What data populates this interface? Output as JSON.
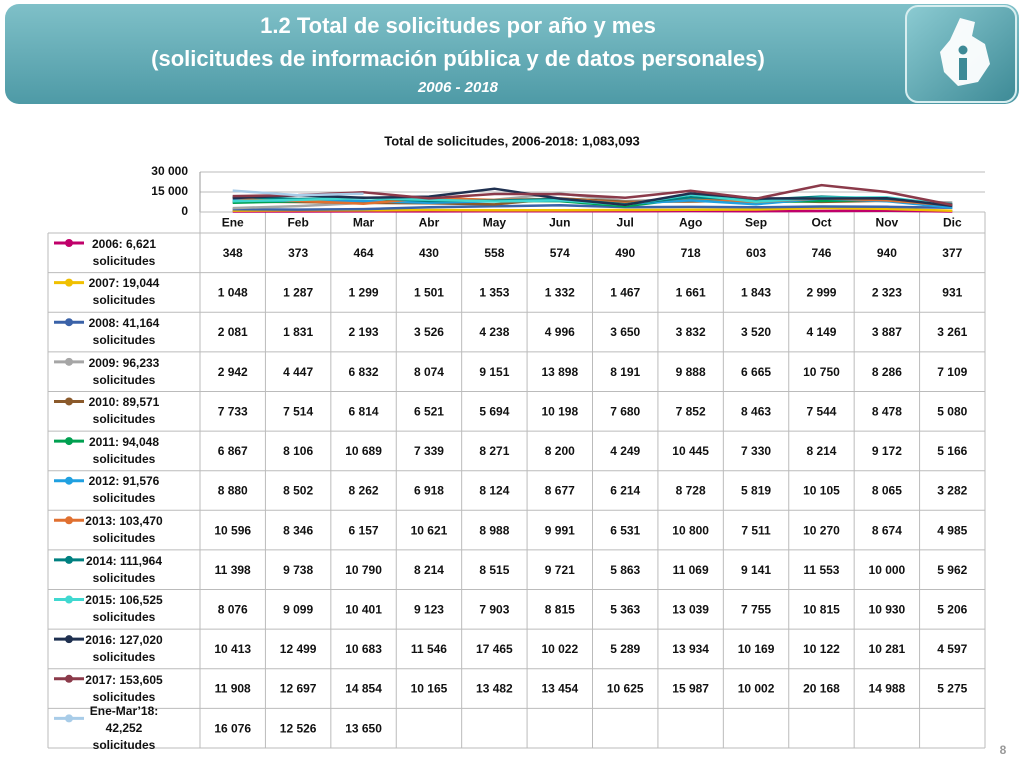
{
  "header": {
    "title": "1.2 Total de solicitudes por año y mes",
    "subtitle": "(solicitudes de información pública y de datos personales)",
    "period": "2006 - 2018"
  },
  "page_number": "8",
  "chart_data": {
    "type": "line",
    "title": "Total de solicitudes, 2006-2018: 1,083,093",
    "categories": [
      "Ene",
      "Feb",
      "Mar",
      "Abr",
      "May",
      "Jun",
      "Jul",
      "Ago",
      "Sep",
      "Oct",
      "Nov",
      "Dic"
    ],
    "ylim": [
      0,
      30000
    ],
    "yticks": [
      0,
      {
        "value": 15000,
        "label": "15 000"
      },
      {
        "value": 30000,
        "label": "30 000"
      }
    ],
    "grid": true,
    "series": [
      {
        "name": "2006: 6,621 solicitudes",
        "color": "#c0006a",
        "values": [
          348,
          373,
          464,
          430,
          558,
          574,
          490,
          718,
          603,
          746,
          940,
          377
        ],
        "value_labels": [
          "348",
          "373",
          "464",
          "430",
          "558",
          "574",
          "490",
          "718",
          "603",
          "746",
          "940",
          "377"
        ]
      },
      {
        "name": "2007: 19,044 solicitudes",
        "color": "#f0c000",
        "values": [
          1048,
          1287,
          1299,
          1501,
          1353,
          1332,
          1467,
          1661,
          1843,
          2999,
          2323,
          931
        ],
        "value_labels": [
          "1 048",
          "1 287",
          "1 299",
          "1 501",
          "1 353",
          "1 332",
          "1 467",
          "1 661",
          "1 843",
          "2 999",
          "2 323",
          "931"
        ]
      },
      {
        "name": "2008: 41,164 solicitudes",
        "color": "#3a62a8",
        "values": [
          2081,
          1831,
          2193,
          3526,
          4238,
          4996,
          3650,
          3832,
          3520,
          4149,
          3887,
          3261
        ],
        "value_labels": [
          "2 081",
          "1 831",
          "2 193",
          "3 526",
          "4 238",
          "4 996",
          "3 650",
          "3 832",
          "3 520",
          "4 149",
          "3 887",
          "3 261"
        ]
      },
      {
        "name": "2009: 96,233 solicitudes",
        "color": "#a6a6a6",
        "values": [
          2942,
          4447,
          6832,
          8074,
          9151,
          13898,
          8191,
          9888,
          6665,
          10750,
          8286,
          7109
        ],
        "value_labels": [
          "2 942",
          "4 447",
          "6 832",
          "8 074",
          "9 151",
          "13 898",
          "8 191",
          "9 888",
          "6 665",
          "10 750",
          "8 286",
          "7 109"
        ]
      },
      {
        "name": "2010: 89,571 solicitudes",
        "color": "#8b5a2b",
        "values": [
          7733,
          7514,
          6814,
          6521,
          5694,
          10198,
          7680,
          7852,
          8463,
          7544,
          8478,
          5080
        ],
        "value_labels": [
          "7 733",
          "7 514",
          "6 814",
          "6 521",
          "5 694",
          "10 198",
          "7 680",
          "7 852",
          "8 463",
          "7 544",
          "8 478",
          "5 080"
        ]
      },
      {
        "name": "2011: 94,048 solicitudes",
        "color": "#00a050",
        "values": [
          6867,
          8106,
          10689,
          7339,
          8271,
          8200,
          4249,
          10445,
          7330,
          8214,
          9172,
          5166
        ],
        "value_labels": [
          "6 867",
          "8 106",
          "10 689",
          "7 339",
          "8 271",
          "8 200",
          "4 249",
          "10 445",
          "7 330",
          "8 214",
          "9 172",
          "5 166"
        ]
      },
      {
        "name": "2012: 91,576 solicitudes",
        "color": "#20a0e0",
        "values": [
          8880,
          8502,
          8262,
          6918,
          8124,
          8677,
          6214,
          8728,
          5819,
          10105,
          8065,
          3282
        ],
        "value_labels": [
          "8 880",
          "8 502",
          "8 262",
          "6 918",
          "8 124",
          "8 677",
          "6 214",
          "8 728",
          "5 819",
          "10 105",
          "8 065",
          "3 282"
        ]
      },
      {
        "name": "2013: 103,470 solicitudes",
        "color": "#e07030",
        "values": [
          10596,
          8346,
          6157,
          10621,
          8988,
          9991,
          6531,
          10800,
          7511,
          10270,
          8674,
          4985
        ],
        "value_labels": [
          "10 596",
          "8 346",
          "6 157",
          "10 621",
          "8 988",
          "9 991",
          "6 531",
          "10 800",
          "7 511",
          "10 270",
          "8 674",
          "4 985"
        ]
      },
      {
        "name": "2014: 111,964 solicitudes",
        "color": "#008080",
        "values": [
          11398,
          9738,
          10790,
          8214,
          8515,
          9721,
          5863,
          11069,
          9141,
          11553,
          10000,
          5962
        ],
        "value_labels": [
          "11 398",
          "9 738",
          "10 790",
          "8 214",
          "8 515",
          "9 721",
          "5 863",
          "11 069",
          "9 141",
          "11 553",
          "10 000",
          "5 962"
        ]
      },
      {
        "name": "2015: 106,525 solicitudes",
        "color": "#40d8d0",
        "values": [
          8076,
          9099,
          10401,
          9123,
          7903,
          8815,
          5363,
          13039,
          7755,
          10815,
          10930,
          5206
        ],
        "value_labels": [
          "8 076",
          "9 099",
          "10 401",
          "9 123",
          "7 903",
          "8 815",
          "5 363",
          "13 039",
          "7 755",
          "10 815",
          "10 930",
          "5 206"
        ]
      },
      {
        "name": "2016: 127,020 solicitudes",
        "color": "#1f3050",
        "values": [
          10413,
          12499,
          10683,
          11546,
          17465,
          10022,
          5289,
          13934,
          10169,
          10122,
          10281,
          4597
        ],
        "value_labels": [
          "10 413",
          "12 499",
          "10 683",
          "11 546",
          "17 465",
          "10 022",
          "5 289",
          "13 934",
          "10 169",
          "10 122",
          "10 281",
          "4 597"
        ]
      },
      {
        "name": "2017: 153,605 solicitudes",
        "color": "#8b3a4a",
        "values": [
          11908,
          12697,
          14854,
          10165,
          13482,
          13454,
          10625,
          15987,
          10002,
          20168,
          14988,
          5275
        ],
        "value_labels": [
          "11 908",
          "12 697",
          "14 854",
          "10 165",
          "13 482",
          "13 454",
          "10 625",
          "15 987",
          "10 002",
          "20 168",
          "14 988",
          "5 275"
        ]
      },
      {
        "name": "Ene-Mar’18: 42,252 solicitudes",
        "color": "#a8cce8",
        "values": [
          16076,
          12526,
          13650,
          null,
          null,
          null,
          null,
          null,
          null,
          null,
          null,
          null
        ],
        "value_labels": [
          "16 076",
          "12 526",
          "13 650",
          null,
          null,
          null,
          null,
          null,
          null,
          null,
          null,
          null
        ]
      }
    ]
  }
}
